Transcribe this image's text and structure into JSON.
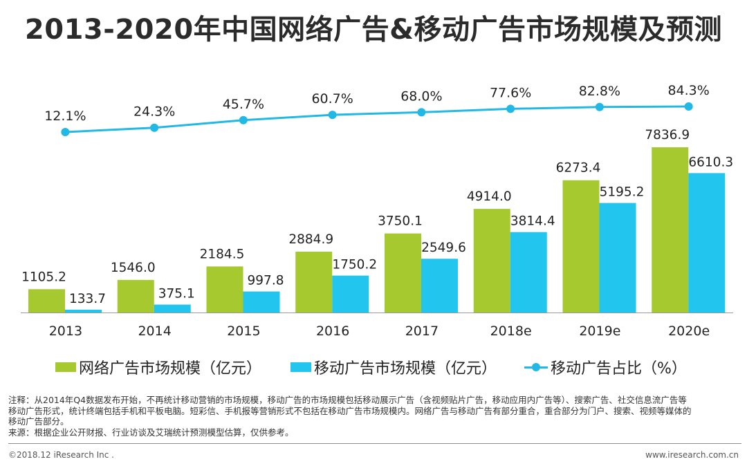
{
  "title": "2013-2020年中国网络广告&移动广告市场规模及预测",
  "colors": {
    "green": "#a5c92e",
    "blue": "#22c5ee",
    "line": "#22b8e6"
  },
  "chart_data": {
    "type": "bar",
    "categories": [
      "2013",
      "2014",
      "2015",
      "2016",
      "2017",
      "2018e",
      "2019e",
      "2020e"
    ],
    "series": [
      {
        "name": "网络广告市场规模（亿元）",
        "type": "bar",
        "values": [
          1105.2,
          1546.0,
          2184.5,
          2884.9,
          3750.1,
          4914.0,
          6273.4,
          7836.9
        ],
        "labels": [
          "1105.2",
          "1546.0",
          "2184.5",
          "2884.9",
          "3750.1",
          "4914.0",
          "6273.4",
          "7836.9"
        ]
      },
      {
        "name": "移动广告市场规模（亿元）",
        "type": "bar",
        "values": [
          133.7,
          375.1,
          997.8,
          1750.2,
          2549.6,
          3814.4,
          5195.2,
          6610.3
        ],
        "labels": [
          "133.7",
          "375.1",
          "997.8",
          "1750.2",
          "2549.6",
          "3814.4",
          "5195.2",
          "6610.3"
        ]
      },
      {
        "name": "移动广告占比（%）",
        "type": "line",
        "values": [
          12.1,
          24.3,
          45.7,
          60.7,
          68.0,
          77.6,
          82.8,
          84.3
        ],
        "labels": [
          "12.1%",
          "24.3%",
          "45.7%",
          "60.7%",
          "68.0%",
          "77.6%",
          "82.8%",
          "84.3%"
        ]
      }
    ],
    "legend_position": "bottom",
    "grid": false
  },
  "notes": [
    "注释：从2014年Q4数据发布开始，不再统计移动营销的市场规模，移动广告的市场规模包括移动展示广告（含视频贴片广告，移动应用内广告等）、搜索广告、社交信息流广告等",
    "移动广告形式，统计终端包括手机和平板电脑。短彩信、手机报等营销形式不包括在移动广告市场规模内。网络广告与移动广告有部分重合，重合部分为门户、搜索、视频等媒体的",
    "移动广告部分。",
    "来源：根据企业公开财报、行业访谈及艾瑞统计预测模型估算，仅供参考。"
  ],
  "footer": {
    "copyright": "©2018.12 iResearch Inc .",
    "website": "www.iresearch.com.cn"
  }
}
